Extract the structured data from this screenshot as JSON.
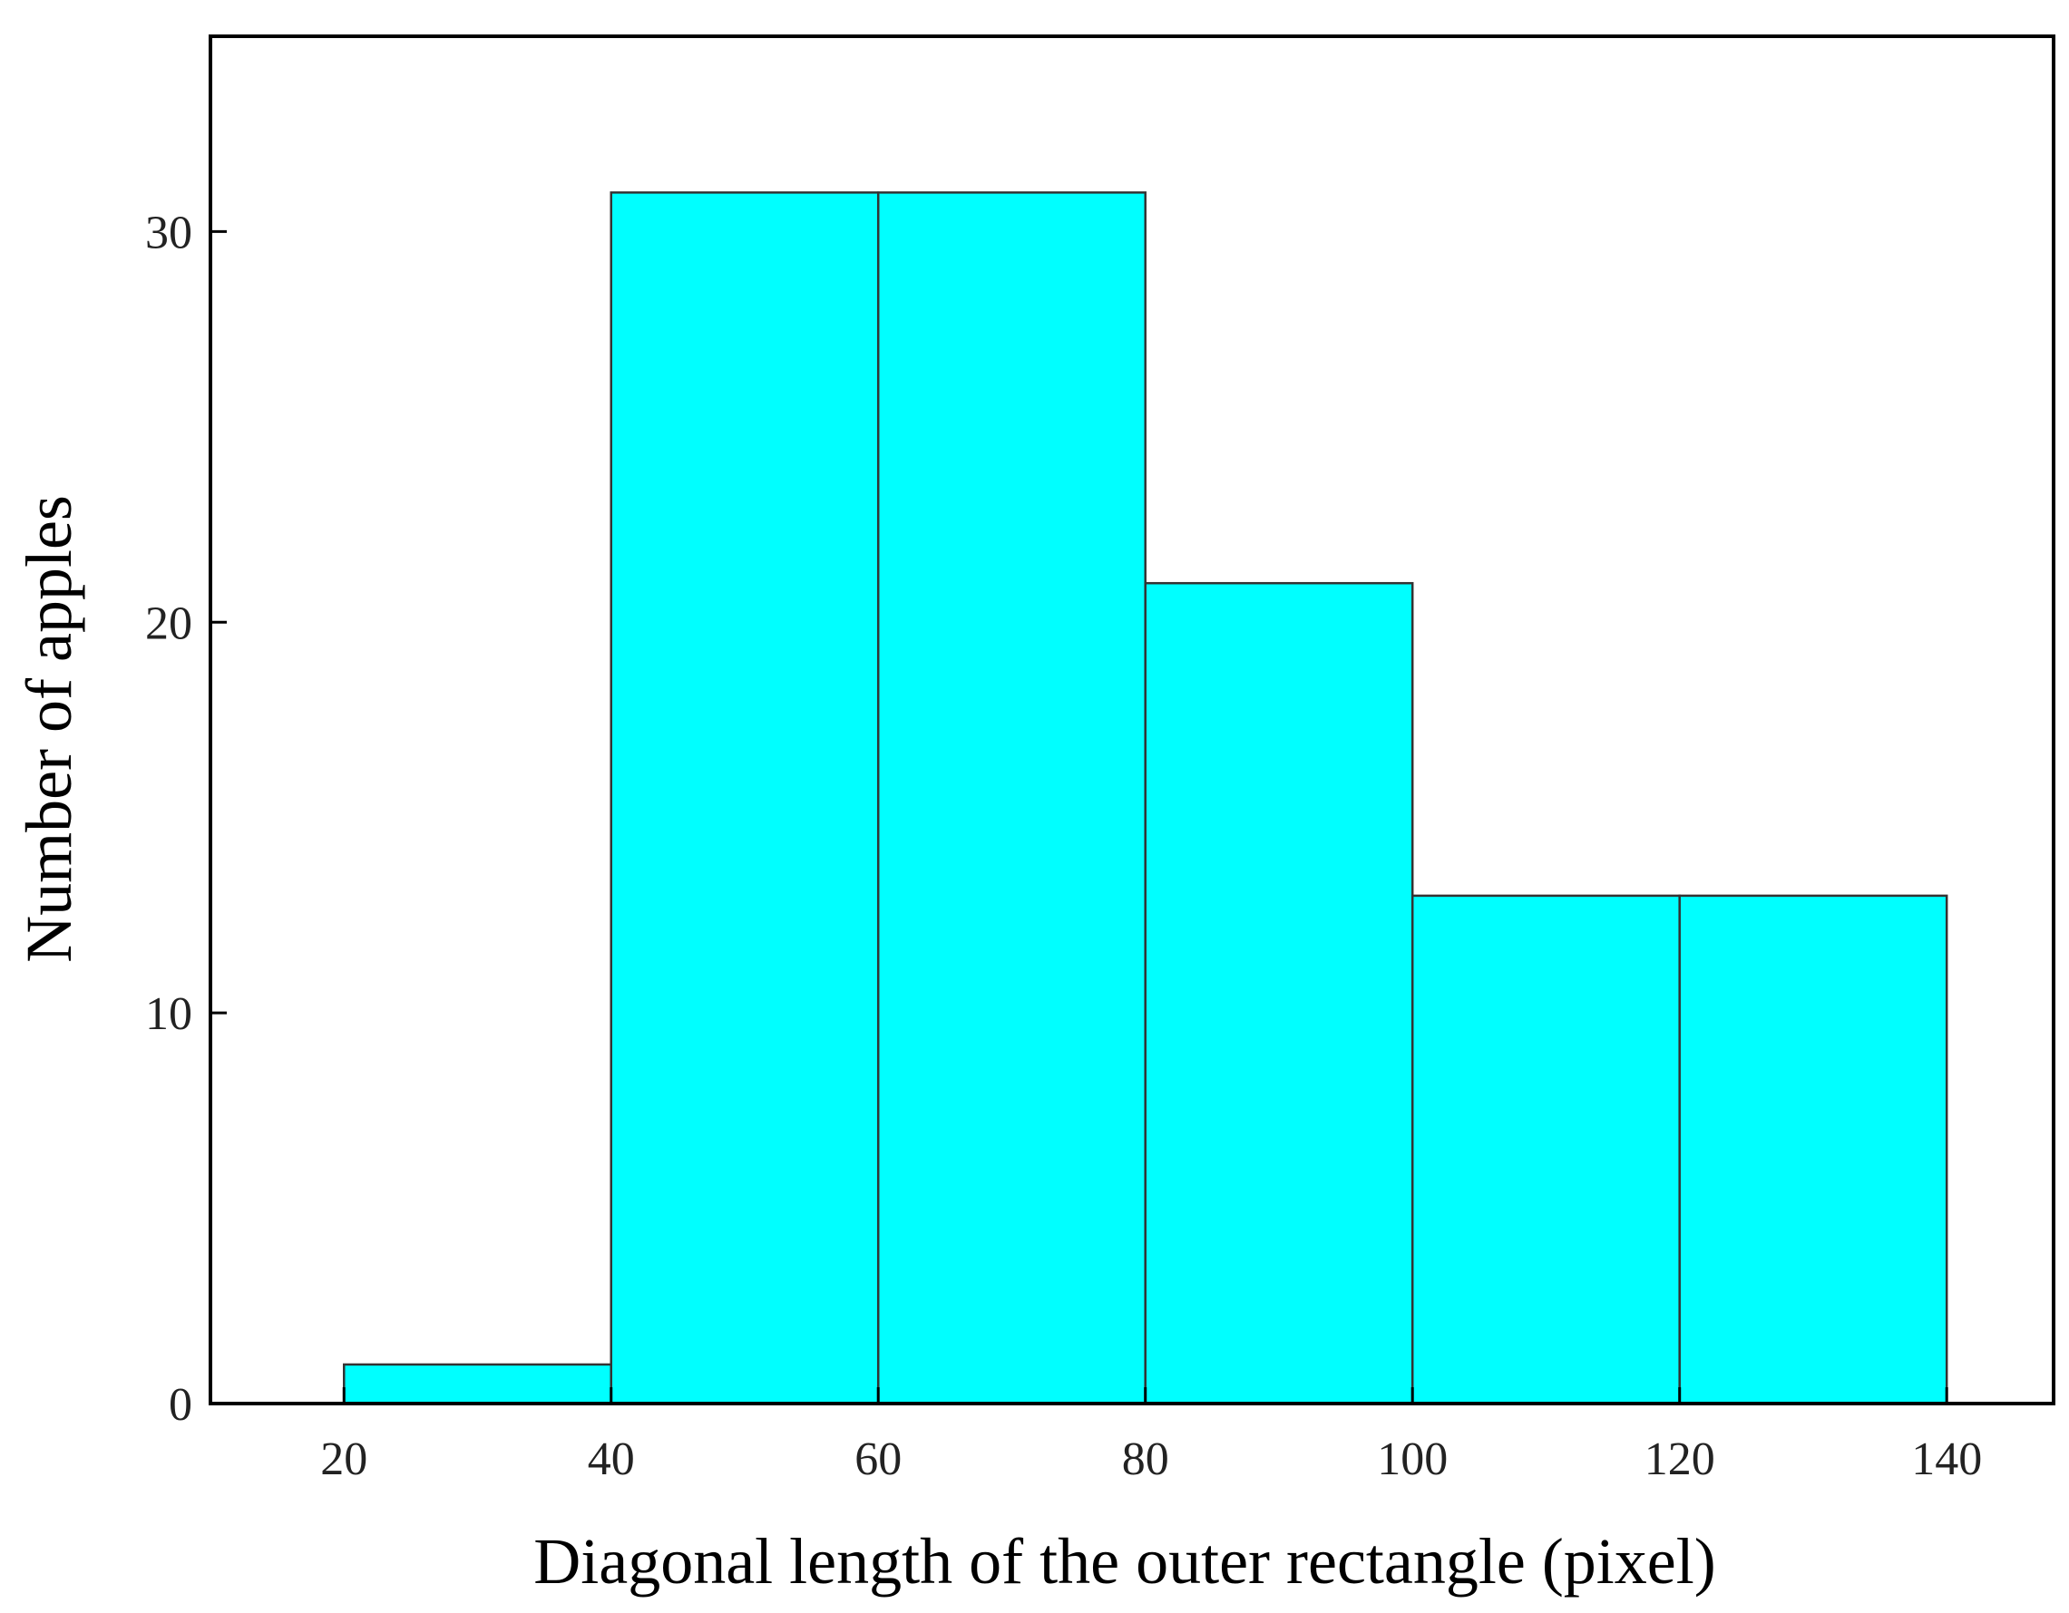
{
  "chart_data": {
    "type": "bar",
    "title": "",
    "xlabel": "Diagonal length of the outer rectangle (pixel)",
    "ylabel": "Number of apples",
    "bins": [
      {
        "start": 20,
        "end": 40,
        "value": 1
      },
      {
        "start": 40,
        "end": 60,
        "value": 31
      },
      {
        "start": 60,
        "end": 80,
        "value": 31
      },
      {
        "start": 80,
        "end": 100,
        "value": 21
      },
      {
        "start": 100,
        "end": 120,
        "value": 13
      },
      {
        "start": 120,
        "end": 140,
        "value": 13
      }
    ],
    "xlim": [
      10,
      148
    ],
    "ylim": [
      0,
      35
    ],
    "xticks": [
      20,
      40,
      60,
      80,
      100,
      120,
      140
    ],
    "yticks": [
      0,
      10,
      20,
      30
    ],
    "grid": false,
    "legend": "none",
    "bar_color": "#00FFFF",
    "edge_color": "#333333"
  }
}
